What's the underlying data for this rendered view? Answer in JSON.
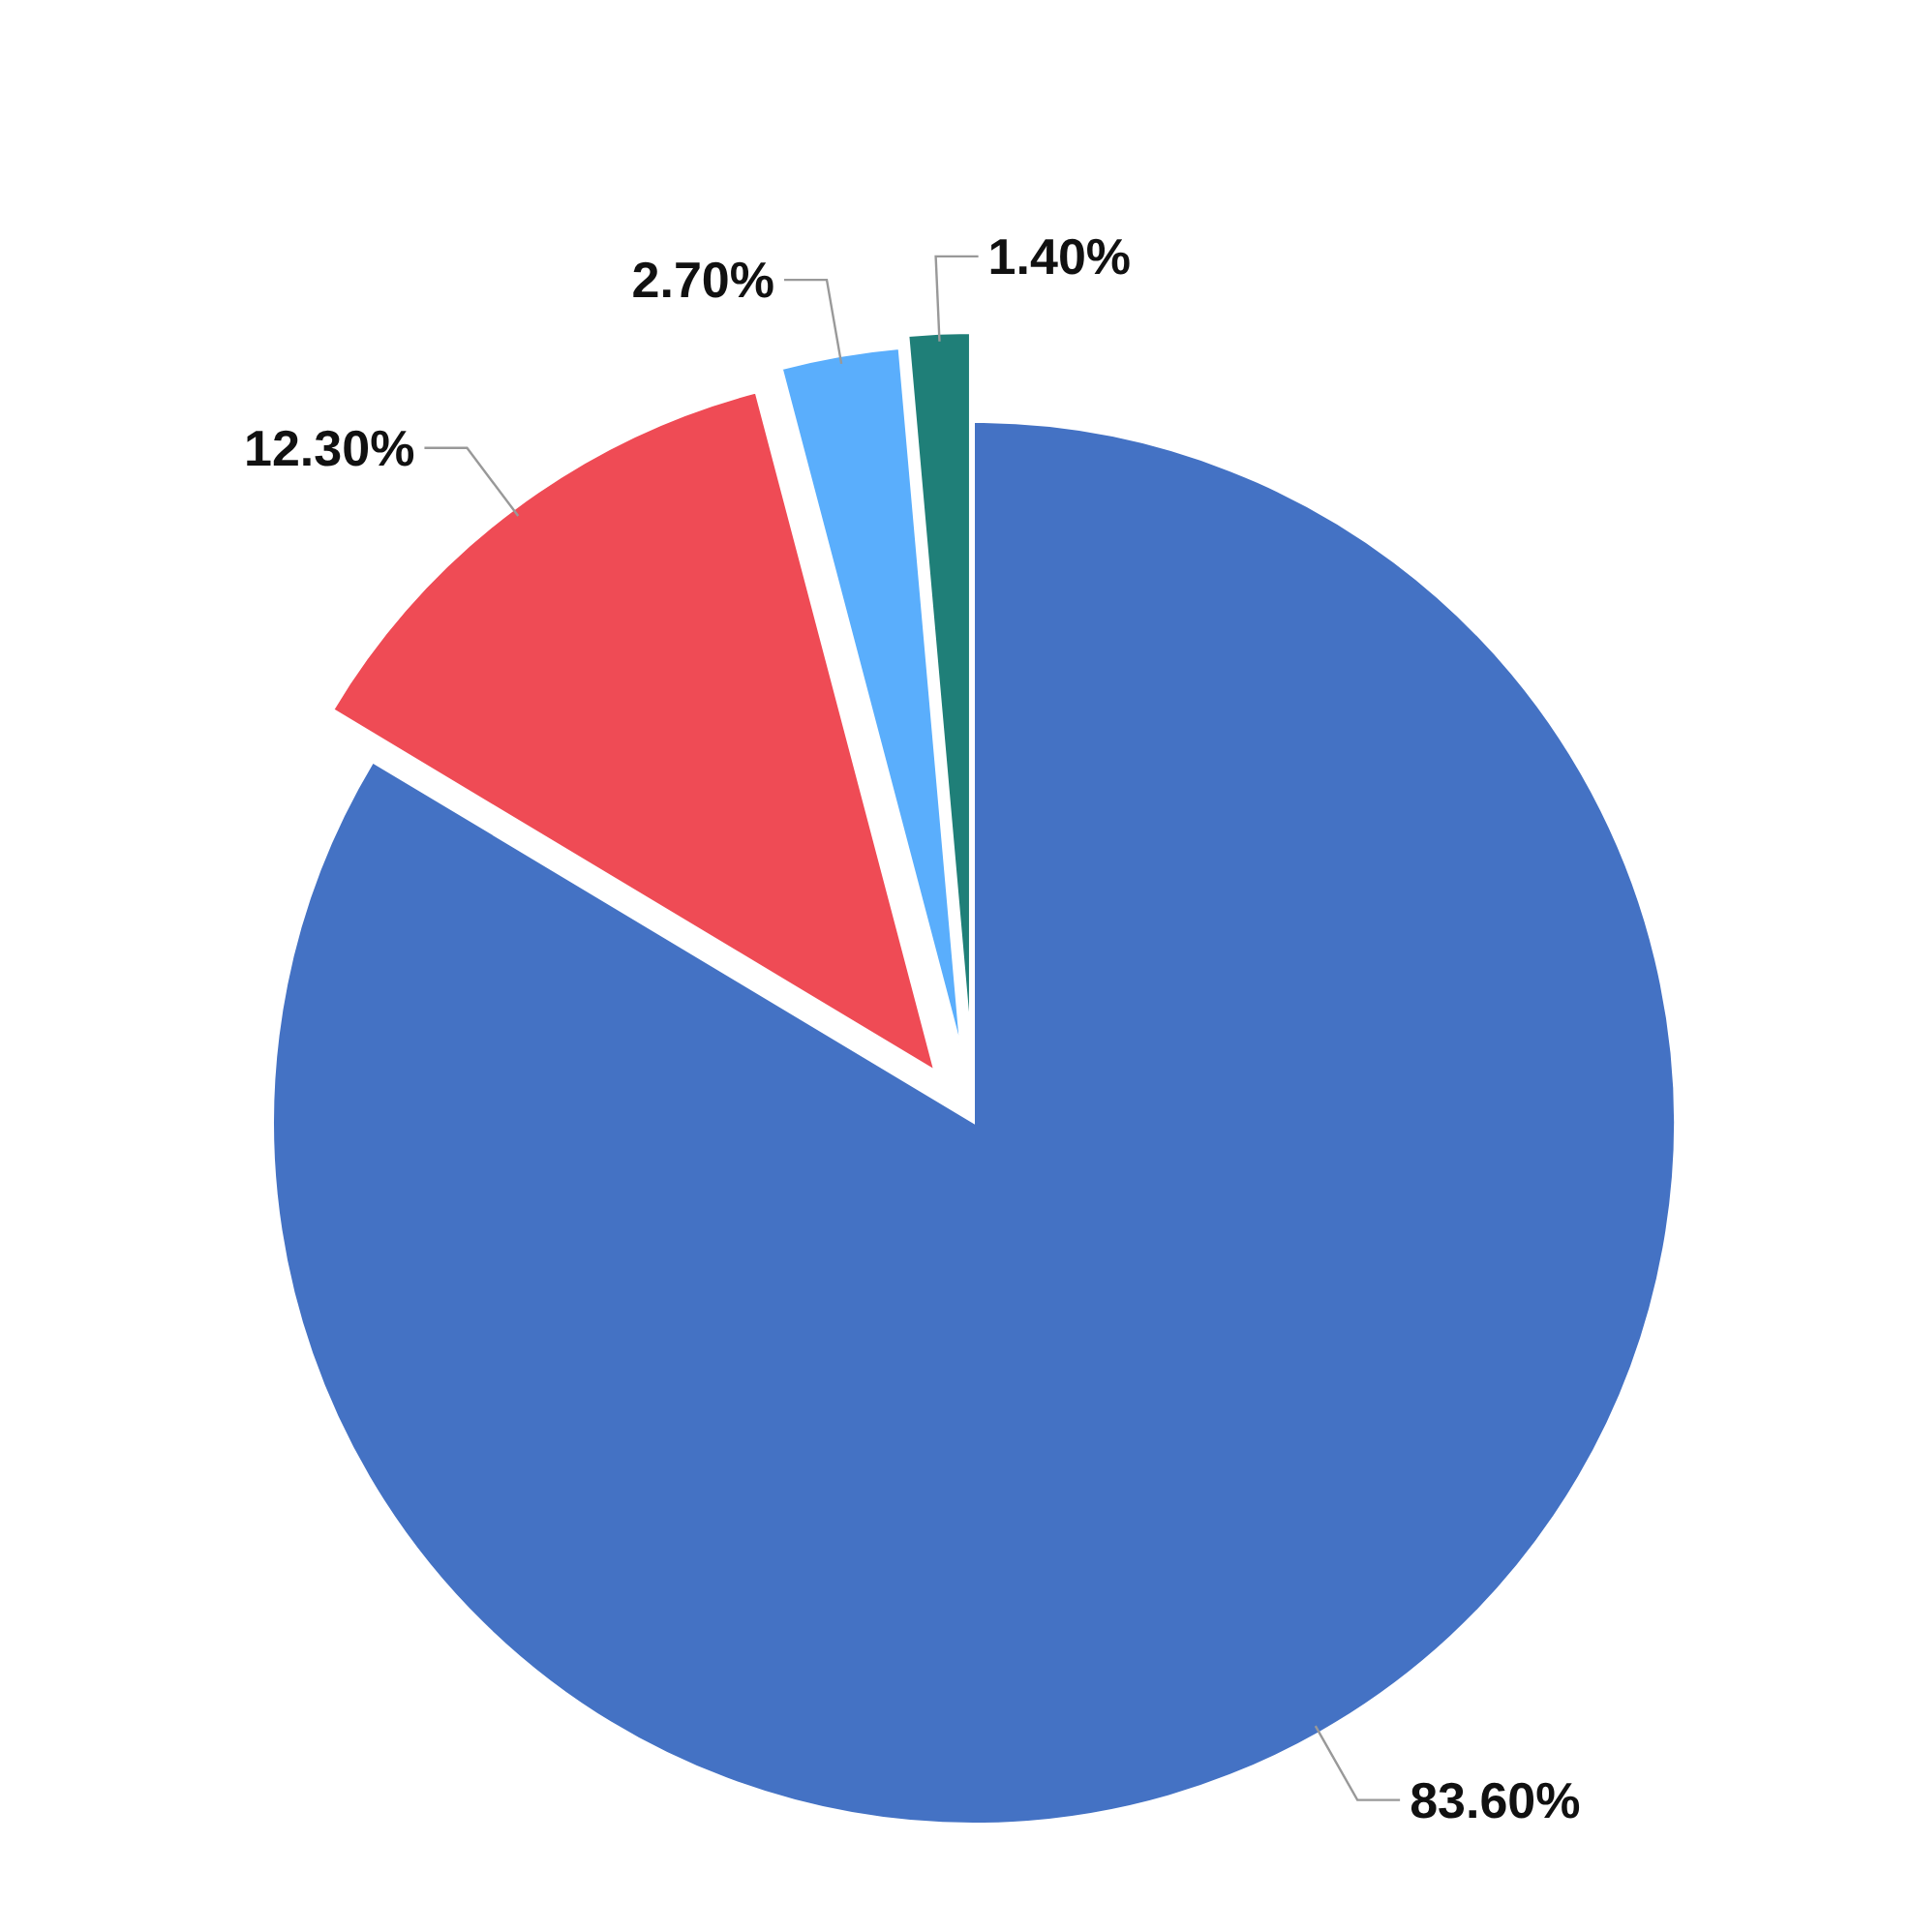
{
  "chart_data": {
    "type": "pie",
    "categories": [
      null,
      null,
      null,
      null
    ],
    "values": [
      83.6,
      12.3,
      2.7,
      1.4
    ],
    "colors": [
      "#4472c4",
      "#ef4b55",
      "#5aaefc",
      "#1f7f78"
    ],
    "value_labels": [
      "83.60%",
      "12.30%",
      "2.70%",
      "1.40%"
    ]
  }
}
